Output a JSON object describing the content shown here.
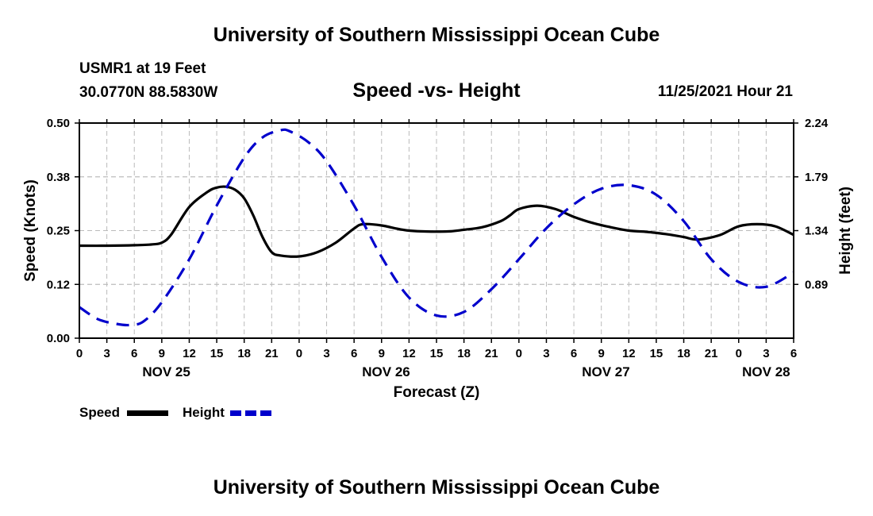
{
  "header": {
    "title": "University of Southern Mississippi Ocean Cube",
    "station": "USMR1 at 19 Feet",
    "coords": "30.0770N  88.5830W",
    "subtitle": "Speed -vs- Height",
    "datetime": "11/25/2021 Hour 21"
  },
  "legend": {
    "speed_label": "Speed",
    "height_label": "Height"
  },
  "footer": {
    "title": "University of Southern Mississippi Ocean Cube"
  },
  "colors": {
    "speed": "#000000",
    "height": "#0000cc",
    "grid": "#bbbbbb"
  },
  "chart_data": {
    "type": "line",
    "title": "Speed -vs- Height",
    "xlabel": "Forecast (Z)",
    "ylabel": "Speed (Knots)",
    "ylabel_right": "Height (feet)",
    "xlim": [
      0,
      78
    ],
    "ylim": [
      0,
      0.5
    ],
    "ylim_right": [
      0.44,
      2.24
    ],
    "yticks": [
      "0.00",
      "0.12",
      "0.25",
      "0.38",
      "0.50"
    ],
    "yticks_right": [
      "0.89",
      "1.34",
      "1.79",
      "2.24"
    ],
    "xtick_labels": [
      "0",
      "3",
      "6",
      "9",
      "12",
      "15",
      "18",
      "21",
      "0",
      "3",
      "6",
      "9",
      "12",
      "15",
      "18",
      "21",
      "0",
      "3",
      "6",
      "9",
      "12",
      "15",
      "18",
      "21",
      "0",
      "3",
      "6"
    ],
    "date_labels": [
      {
        "hour": 9.5,
        "label": "NOV 25"
      },
      {
        "hour": 33.5,
        "label": "NOV 26"
      },
      {
        "hour": 57.5,
        "label": "NOV 27"
      },
      {
        "hour": 75,
        "label": "NOV 28"
      }
    ],
    "grid": true,
    "series": [
      {
        "name": "Speed",
        "axis": "left",
        "style": "solid",
        "x": [
          0,
          3,
          6,
          8,
          9,
          10,
          12,
          14,
          15,
          16,
          17,
          18,
          19,
          20,
          21,
          22,
          24,
          26,
          28,
          30,
          31,
          33,
          36,
          40,
          42,
          44,
          46,
          47,
          48,
          50,
          52,
          54,
          56,
          58,
          60,
          62,
          64,
          66,
          67,
          68,
          70,
          72,
          74,
          76,
          78
        ],
        "values": [
          0.215,
          0.215,
          0.216,
          0.218,
          0.222,
          0.24,
          0.305,
          0.34,
          0.35,
          0.352,
          0.345,
          0.325,
          0.285,
          0.235,
          0.2,
          0.192,
          0.19,
          0.2,
          0.222,
          0.255,
          0.265,
          0.262,
          0.25,
          0.248,
          0.252,
          0.258,
          0.272,
          0.285,
          0.3,
          0.308,
          0.3,
          0.282,
          0.268,
          0.258,
          0.25,
          0.247,
          0.242,
          0.235,
          0.23,
          0.23,
          0.24,
          0.26,
          0.265,
          0.26,
          0.24
        ]
      },
      {
        "name": "Height",
        "axis": "right",
        "style": "dashed",
        "x": [
          0,
          2,
          4,
          5.5,
          7,
          9,
          12,
          15,
          18,
          20,
          22,
          23,
          25,
          27,
          30,
          33,
          36,
          39,
          42,
          45,
          48,
          51,
          54,
          57,
          60,
          63,
          66,
          69,
          72,
          75,
          78
        ],
        "values": [
          0.7,
          0.6,
          0.56,
          0.55,
          0.58,
          0.74,
          1.1,
          1.55,
          1.95,
          2.12,
          2.18,
          2.17,
          2.08,
          1.92,
          1.55,
          1.12,
          0.78,
          0.63,
          0.66,
          0.85,
          1.1,
          1.36,
          1.56,
          1.69,
          1.72,
          1.64,
          1.42,
          1.1,
          0.91,
          0.87,
          0.99
        ]
      }
    ]
  }
}
